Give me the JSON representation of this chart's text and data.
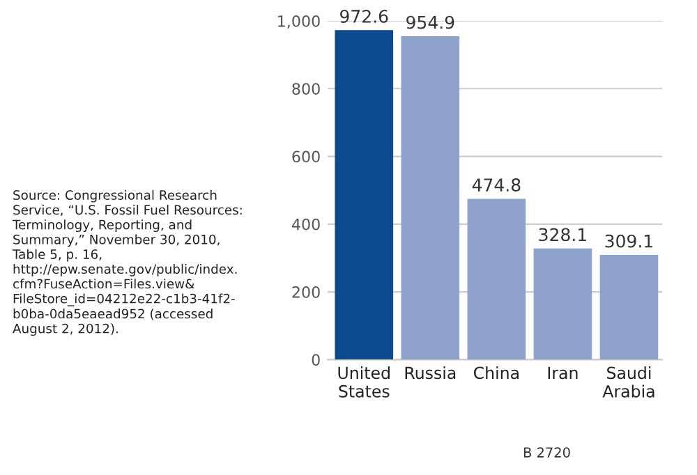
{
  "chart_data": {
    "type": "bar",
    "categories": [
      "United\nStates",
      "Russia",
      "China",
      "Iran",
      "Saudi\nArabia"
    ],
    "values": [
      972.6,
      954.9,
      474.8,
      328.1,
      309.1
    ],
    "colors": [
      "#0b4a8c",
      "#8fa2cc",
      "#8fa2cc",
      "#8fa2cc",
      "#8fa2cc"
    ],
    "ylim": [
      0,
      1000
    ],
    "yticks": [
      0,
      200,
      400,
      600,
      800,
      {
        "value": 1000,
        "label": "1,000"
      }
    ],
    "grid": "y",
    "data_labels": true,
    "annotations": [
      "Source: Congressional Research\nService, “U.S. Fossil Fuel Resources:\nTerminology, Reporting, and\nSummary,” November 30, 2010,\nTable 5, p. 16,\nhttp://epw.senate.gov/public/index.\ncfm?FuseAction=Files.view&\nFileStore_id=04212e22-c1b3-41f2-\nb0ba-0da5eaead952 (accessed\nAugust 2, 2012).",
      "B 2720"
    ]
  }
}
